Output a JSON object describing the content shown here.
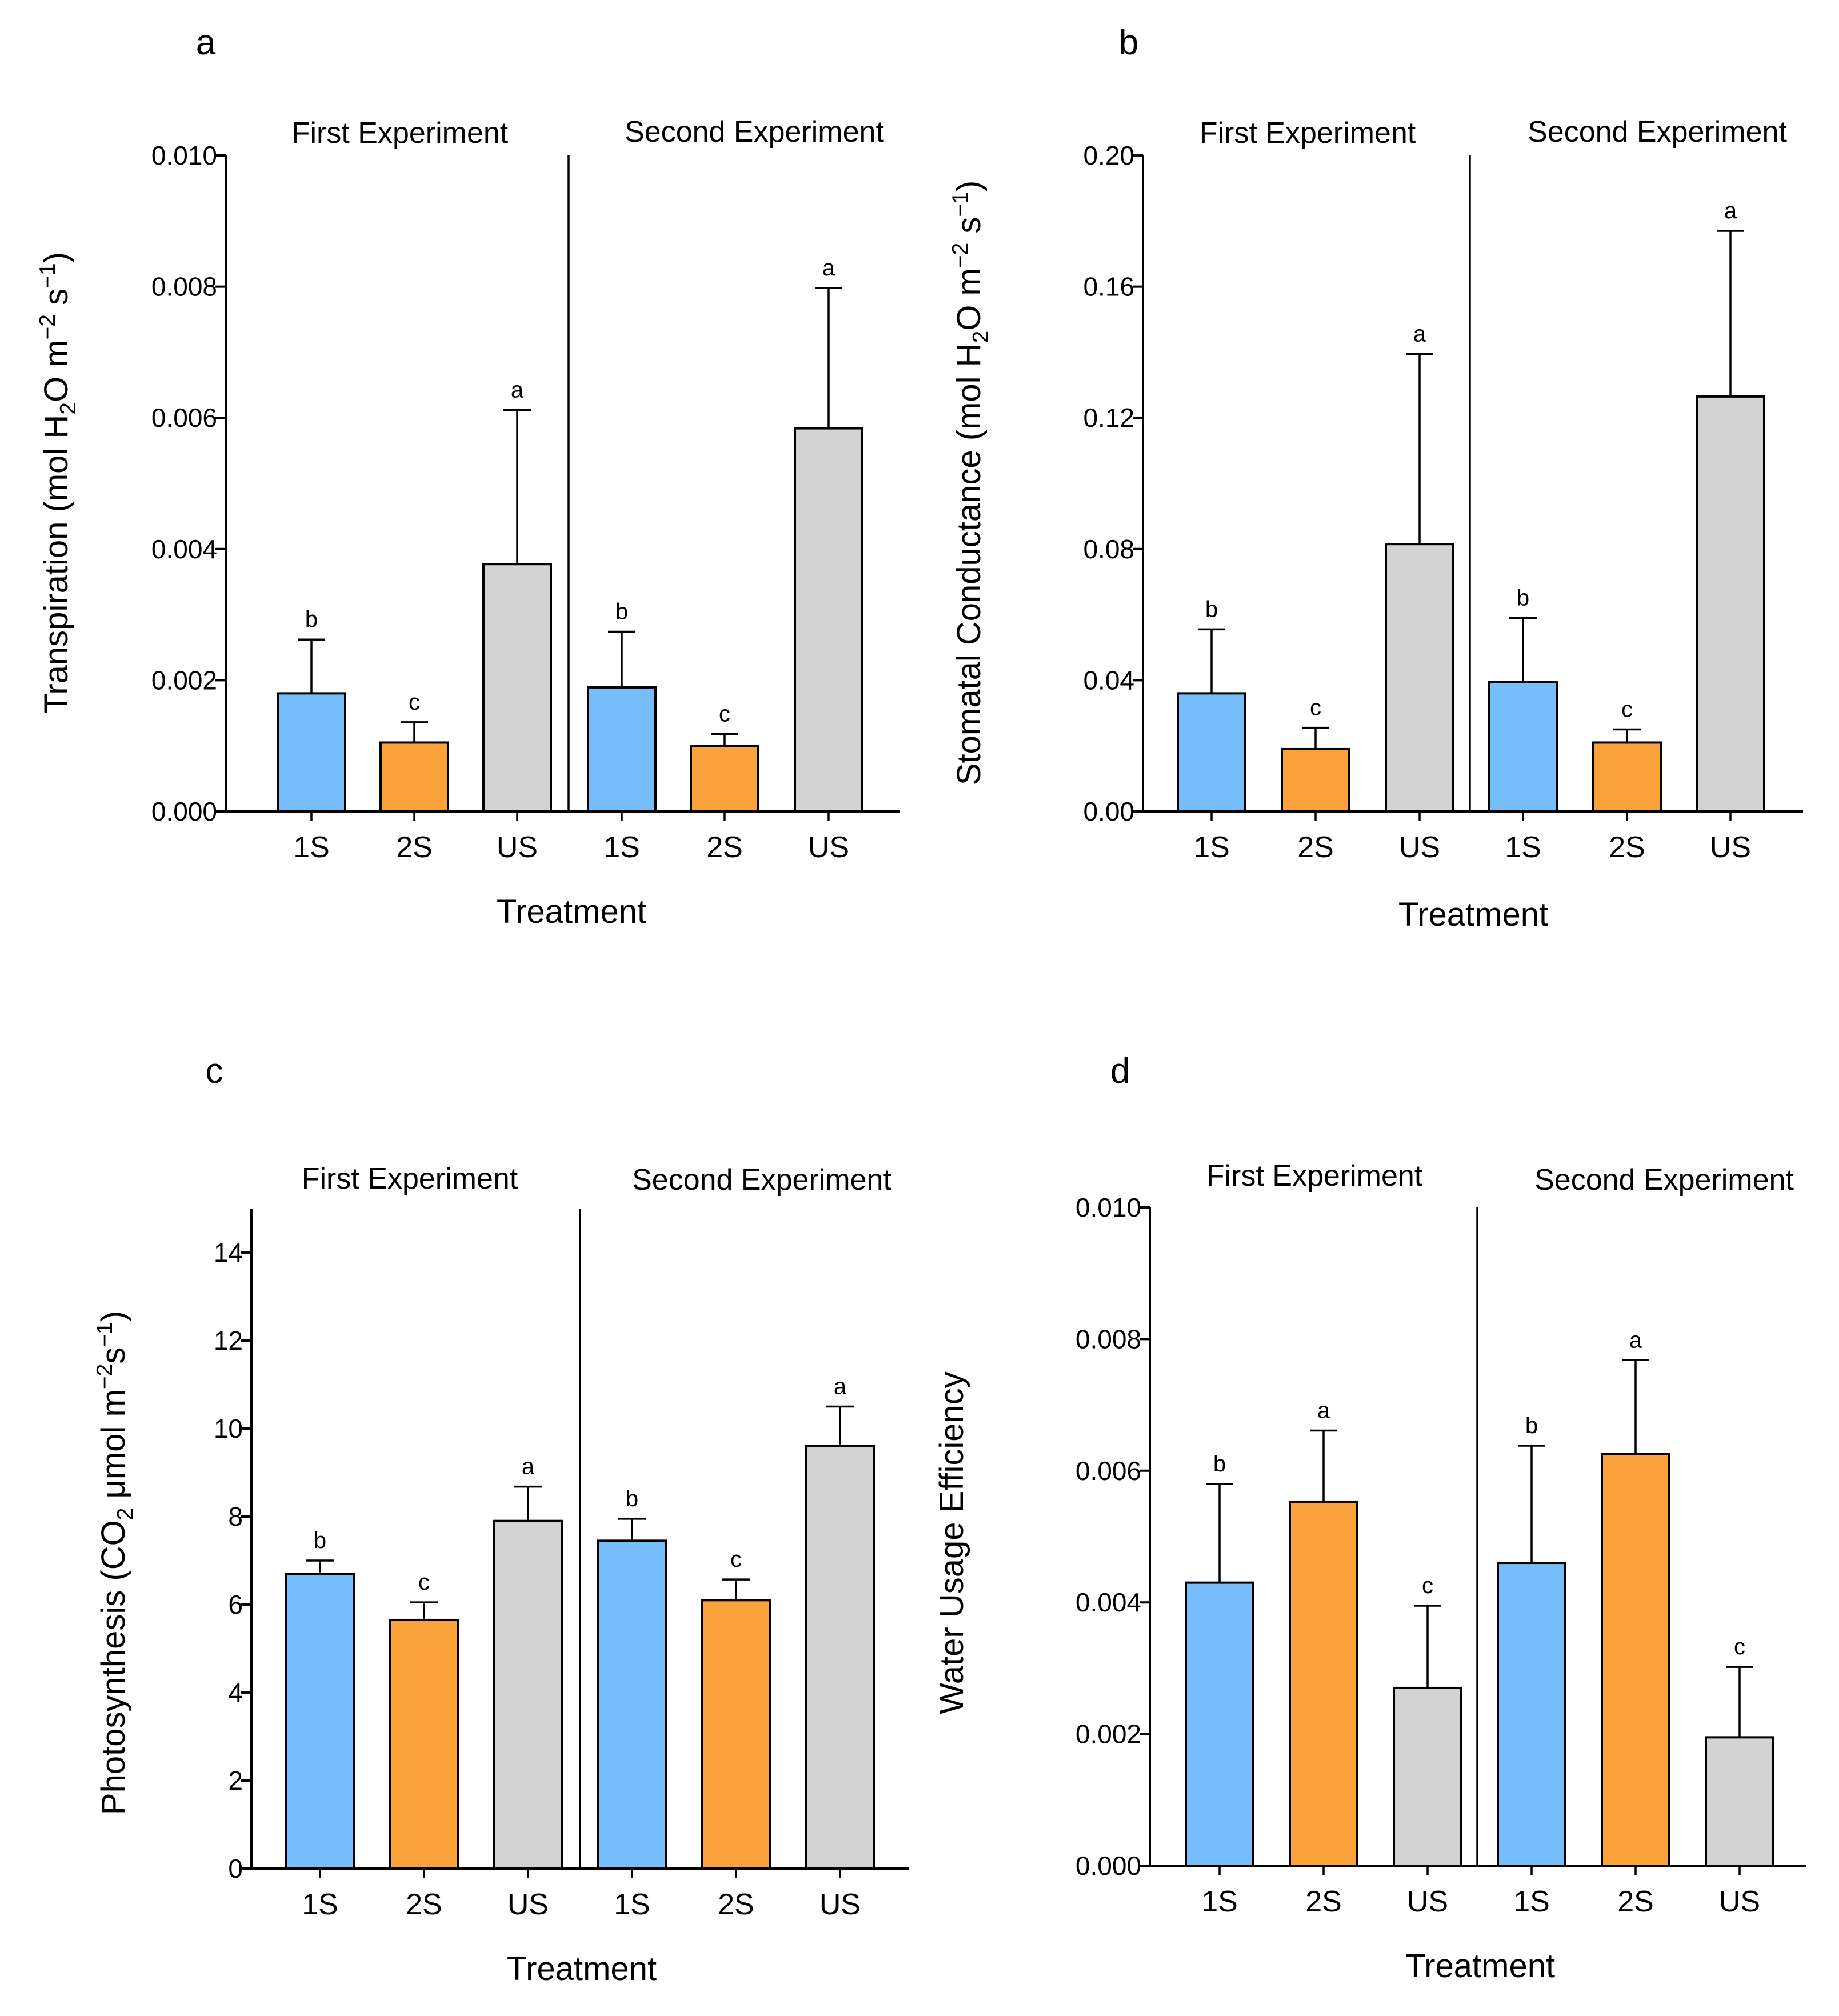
{
  "chart_data": [
    {
      "panel": "a",
      "type": "bar",
      "categories": [
        "1S",
        "2S",
        "US",
        "1S",
        "2S",
        "US"
      ],
      "groups": [
        "First Experiment",
        "Second Experiment"
      ],
      "values": [
        0.0018,
        0.00105,
        0.00377,
        0.00189,
        0.001,
        0.00584
      ],
      "errors": [
        0.00082,
        0.00031,
        0.00235,
        0.00085,
        0.00018,
        0.00214
      ],
      "significance": [
        "b",
        "c",
        "a",
        "b",
        "c",
        "a"
      ],
      "colors": [
        "#76bdfb",
        "#fba13a",
        "#d3d3d3",
        "#76bdfb",
        "#fba13a",
        "#d3d3d3"
      ],
      "yticks": [
        "0.000",
        "0.002",
        "0.004",
        "0.006",
        "0.008",
        "0.010"
      ],
      "ylim": [
        0,
        0.01
      ],
      "ylabel": "Transpiration (mol H",
      "ylabel_sub": "2",
      "ylabel_mid": "O m",
      "ylabel_sup1": "−2",
      "ylabel_mid2": " s",
      "ylabel_sup2": "−1",
      "ylabel_end": ")",
      "xlabel": "Treatment"
    },
    {
      "panel": "b",
      "type": "bar",
      "categories": [
        "1S",
        "2S",
        "US",
        "1S",
        "2S",
        "US"
      ],
      "groups": [
        "First Experiment",
        "Second Experiment"
      ],
      "values": [
        0.036,
        0.019,
        0.0815,
        0.0395,
        0.021,
        0.1265
      ],
      "errors": [
        0.0195,
        0.0065,
        0.058,
        0.0195,
        0.004,
        0.0505
      ],
      "significance": [
        "b",
        "c",
        "a",
        "b",
        "c",
        "a"
      ],
      "colors": [
        "#76bdfb",
        "#fba13a",
        "#d3d3d3",
        "#76bdfb",
        "#fba13a",
        "#d3d3d3"
      ],
      "yticks": [
        "0.00",
        "0.04",
        "0.08",
        "0.12",
        "0.16",
        "0.20"
      ],
      "ylim": [
        0,
        0.2
      ],
      "ylabel": "Stomatal Conductance (mol H",
      "ylabel_sub": "2",
      "ylabel_mid": "O m",
      "ylabel_sup1": "−2",
      "ylabel_mid2": " s",
      "ylabel_sup2": "−1",
      "ylabel_end": ")",
      "xlabel": "Treatment"
    },
    {
      "panel": "c",
      "type": "bar",
      "categories": [
        "1S",
        "2S",
        "US",
        "1S",
        "2S",
        "US"
      ],
      "groups": [
        "First Experiment",
        "Second Experiment"
      ],
      "values": [
        6.7,
        5.65,
        7.9,
        7.45,
        6.1,
        9.6
      ],
      "errors": [
        0.3,
        0.4,
        0.78,
        0.5,
        0.47,
        0.9
      ],
      "significance": [
        "b",
        "c",
        "a",
        "b",
        "c",
        "a"
      ],
      "colors": [
        "#76bdfb",
        "#fba13a",
        "#d3d3d3",
        "#76bdfb",
        "#fba13a",
        "#d3d3d3"
      ],
      "yticks": [
        "0",
        "2",
        "4",
        "6",
        "8",
        "10",
        "12",
        "14"
      ],
      "ylim": [
        0,
        15
      ],
      "ylabel": "Photosynthesis (CO",
      "ylabel_sub": "2",
      "ylabel_mid": " μmol m",
      "ylabel_sup1": "−2",
      "ylabel_mid2": "s",
      "ylabel_sup2": "−1",
      "ylabel_end": ")",
      "xlabel": "Treatment"
    },
    {
      "panel": "d",
      "type": "bar",
      "categories": [
        "1S",
        "2S",
        "US",
        "1S",
        "2S",
        "US"
      ],
      "groups": [
        "First Experiment",
        "Second Experiment"
      ],
      "values": [
        0.0043,
        0.00553,
        0.0027,
        0.0046,
        0.00625,
        0.00195
      ],
      "errors": [
        0.0015,
        0.00108,
        0.00125,
        0.00178,
        0.00143,
        0.00107
      ],
      "significance": [
        "b",
        "a",
        "c",
        "b",
        "a",
        "c"
      ],
      "colors": [
        "#76bdfb",
        "#fba13a",
        "#d3d3d3",
        "#76bdfb",
        "#fba13a",
        "#d3d3d3"
      ],
      "yticks": [
        "0.000",
        "0.002",
        "0.004",
        "0.006",
        "0.008",
        "0.010"
      ],
      "ylim": [
        0,
        0.01
      ],
      "ylabel": "Water Usage Efficiency",
      "ylabel_sub": "",
      "ylabel_mid": "",
      "ylabel_sup1": "",
      "ylabel_mid2": "",
      "ylabel_sup2": "",
      "ylabel_end": "",
      "xlabel": "Treatment"
    }
  ]
}
